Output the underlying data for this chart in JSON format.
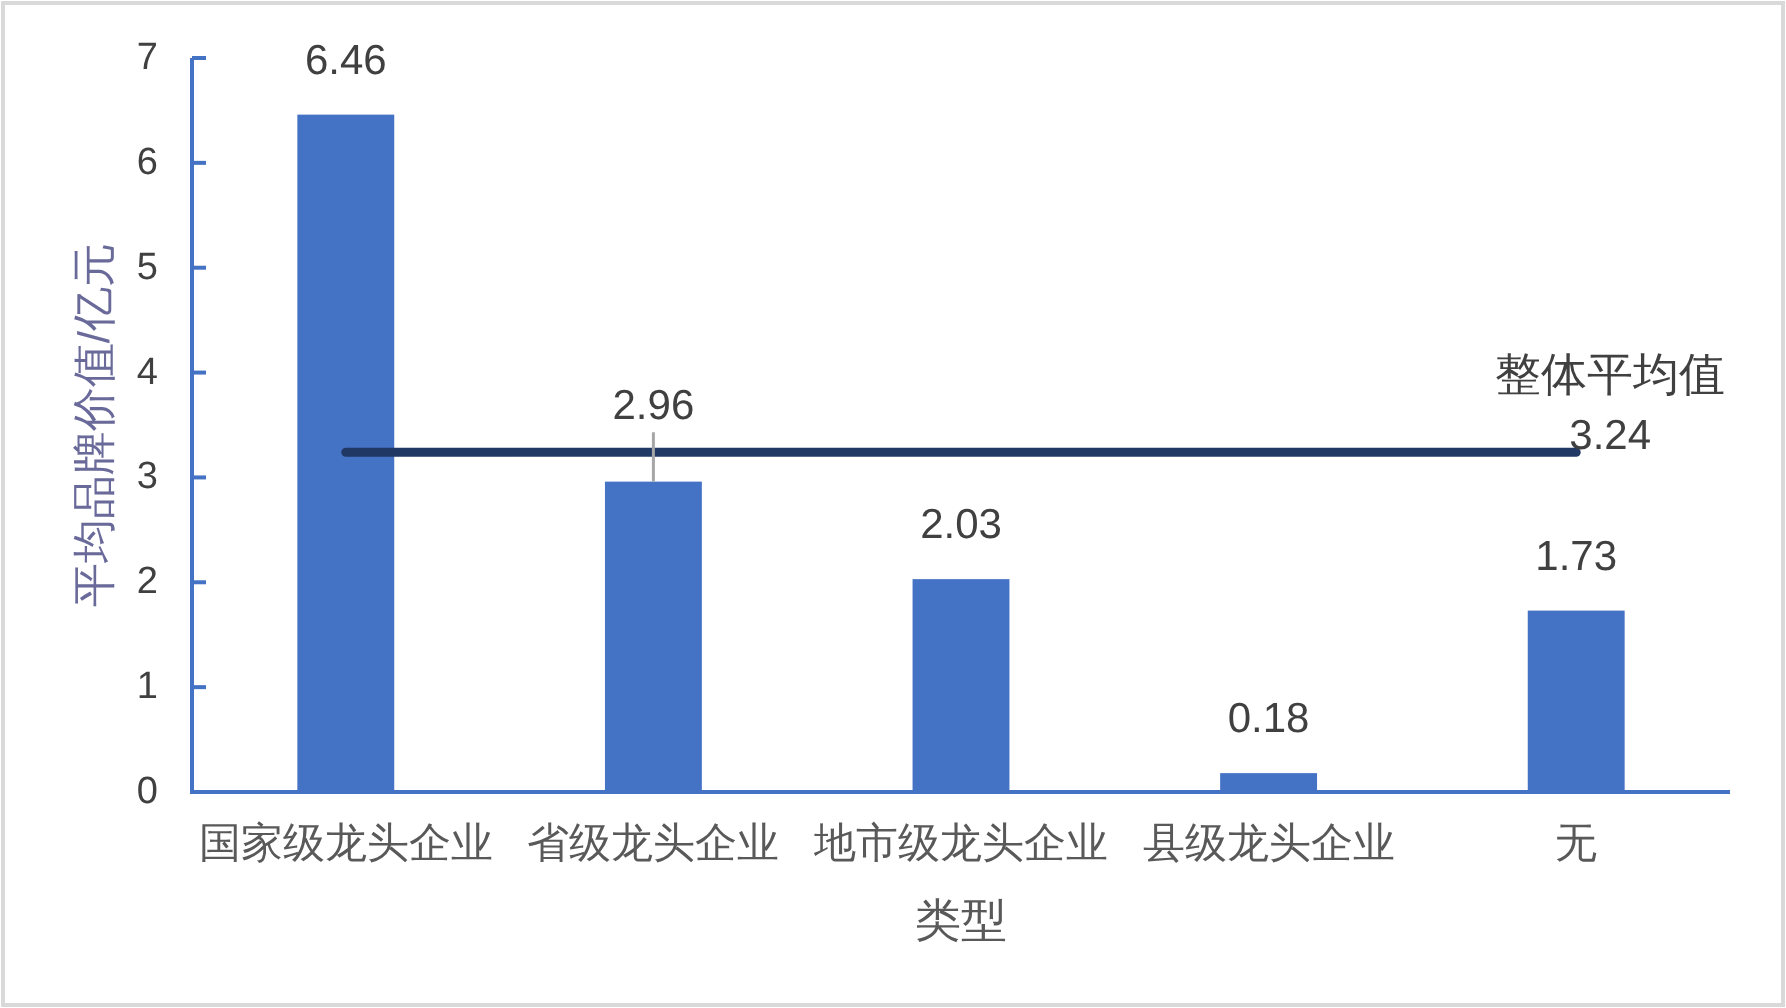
{
  "chart_data": {
    "type": "bar",
    "ylabel": "平均品牌价值/亿元",
    "xlabel": "类型",
    "categories": [
      "国家级龙头企业",
      "省级龙头企业",
      "地市级龙头企业",
      "县级龙头企业",
      "无"
    ],
    "ylim": [
      0,
      7
    ],
    "yticks": [
      0,
      1,
      2,
      3,
      4,
      5,
      6,
      7
    ],
    "series": [
      {
        "color": "#4472c4",
        "values": [
          6.46,
          2.96,
          2.03,
          0.18,
          1.73
        ],
        "value_labels": [
          "6.46",
          "2.96",
          "2.03",
          "0.18",
          "1.73"
        ]
      },
      {
        "type": "line",
        "name": "整体平均值",
        "color": "#203864",
        "values": [
          3.24,
          3.24,
          3.24,
          3.24,
          3.24
        ],
        "value_labels": [
          null,
          null,
          null,
          null,
          "3.24"
        ]
      }
    ]
  }
}
